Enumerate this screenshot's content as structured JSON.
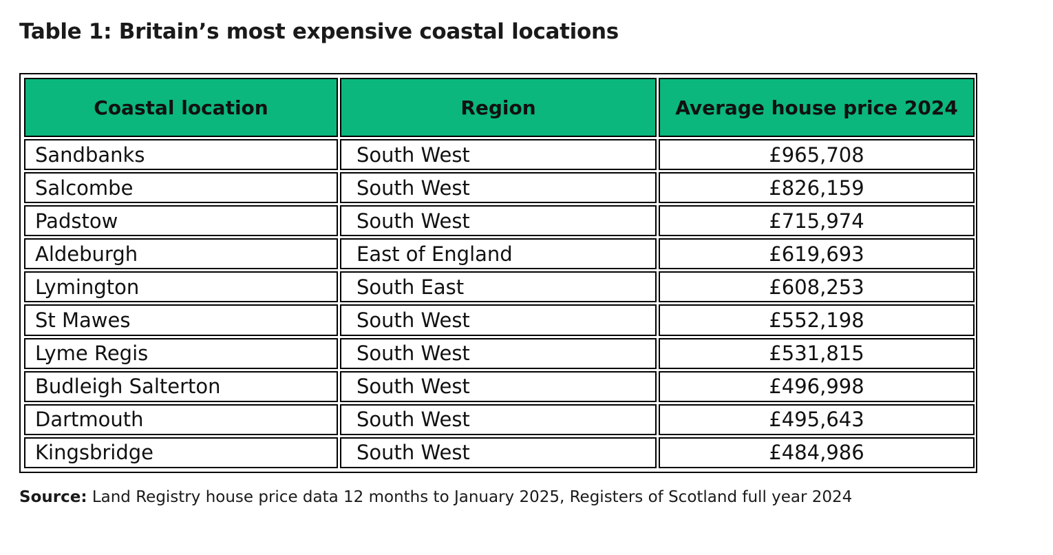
{
  "title": "Table 1: Britain’s most expensive coastal locations",
  "table": {
    "headers": {
      "location": "Coastal location",
      "region": "Region",
      "price": "Average house price 2024"
    },
    "header_color": "#0bb77c",
    "rows": [
      {
        "location": "Sandbanks",
        "region": "South West",
        "price": "£965,708"
      },
      {
        "location": "Salcombe",
        "region": "South West",
        "price": "£826,159"
      },
      {
        "location": "Padstow",
        "region": "South West",
        "price": "£715,974"
      },
      {
        "location": "Aldeburgh",
        "region": "East of England",
        "price": "£619,693"
      },
      {
        "location": "Lymington",
        "region": "South East",
        "price": "£608,253"
      },
      {
        "location": "St Mawes",
        "region": "South West",
        "price": "£552,198"
      },
      {
        "location": "Lyme Regis",
        "region": "South West",
        "price": "£531,815"
      },
      {
        "location": "Budleigh Salterton",
        "region": "South West",
        "price": "£496,998"
      },
      {
        "location": "Dartmouth",
        "region": "South West",
        "price": "£495,643"
      },
      {
        "location": "Kingsbridge",
        "region": "South West",
        "price": "£484,986"
      }
    ]
  },
  "source": {
    "label": "Source:",
    "text": " Land Registry house price data 12 months to January 2025, Registers of Scotland full year 2024"
  }
}
